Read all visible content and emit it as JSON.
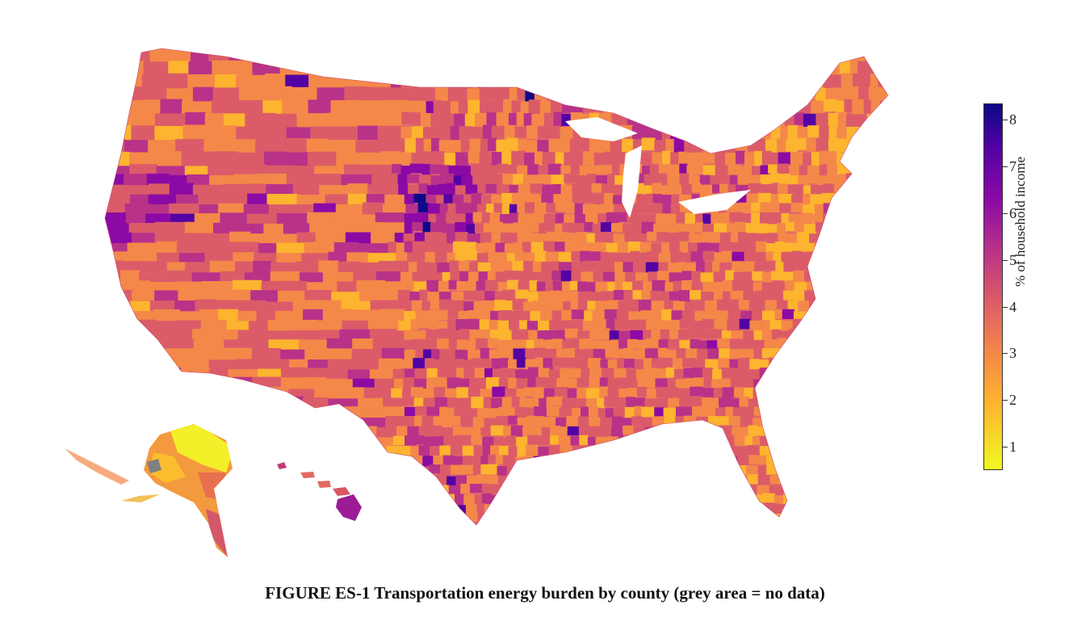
{
  "caption": "FIGURE ES-1  Transportation energy burden by county (grey area = no data)",
  "colorbar": {
    "label": "% of household income",
    "min": 0.5,
    "max": 8.35,
    "ticks": [
      "1",
      "2",
      "3",
      "4",
      "5",
      "6",
      "7",
      "8"
    ],
    "palette": [
      "#f0f921",
      "#fdb42f",
      "#f48849",
      "#db5c68",
      "#b83289",
      "#8b0aa5",
      "#5302a3",
      "#0d0887"
    ]
  },
  "no_data_color": "#808080"
}
